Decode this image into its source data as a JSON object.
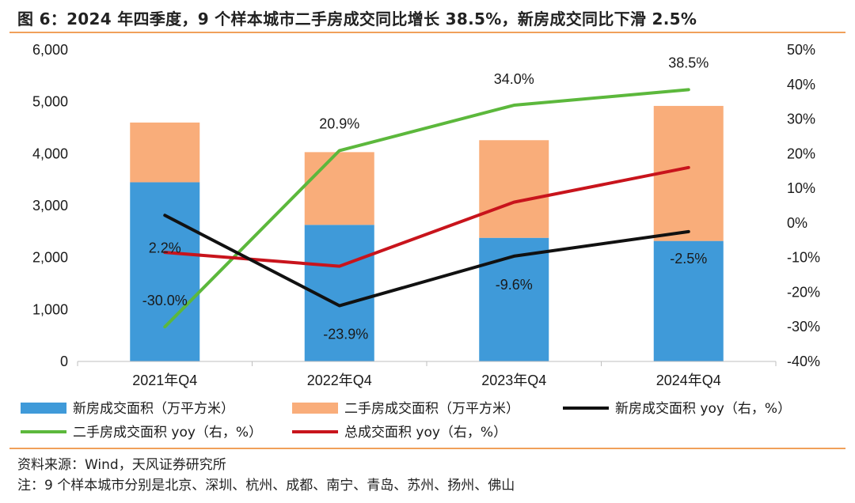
{
  "figure": {
    "title": "图 6：2024 年四季度，9 个样本城市二手房成交同比增长 38.5%，新房成交同比下滑 2.5%",
    "source": "资料来源：Wind，天风证券研究所",
    "note": "注：9 个样本城市分别是北京、深圳、杭州、成都、南宁、青岛、苏州、扬州、佛山"
  },
  "chart_data": {
    "type": "bar",
    "stacked": true,
    "categories": [
      "2021年Q4",
      "2022年Q4",
      "2023年Q4",
      "2024年Q4"
    ],
    "left_axis": {
      "ylim": [
        0,
        6000
      ],
      "ticks": [
        "0",
        "1,000",
        "2,000",
        "3,000",
        "4,000",
        "5,000",
        "6,000"
      ]
    },
    "right_axis": {
      "ylim": [
        -40,
        50
      ],
      "ticks": [
        "-40%",
        "-30%",
        "-20%",
        "-10%",
        "0%",
        "10%",
        "20%",
        "30%",
        "40%",
        "50%"
      ]
    },
    "bar_series": [
      {
        "name": "新房成交面积（万平方米）",
        "color": "#3f9ad9",
        "values": [
          3450,
          2630,
          2380,
          2320
        ]
      },
      {
        "name": "二手房成交面积（万平方米）",
        "color": "#f9ad7a",
        "values": [
          1150,
          1400,
          1880,
          2600
        ]
      }
    ],
    "line_series": [
      {
        "name": "新房成交面积 yoy（右，%）",
        "color": "#111111",
        "values": [
          2.2,
          -23.9,
          -9.6,
          -2.5
        ],
        "labels": [
          "2.2%",
          "-23.9%",
          "-9.6%",
          "-2.5%"
        ]
      },
      {
        "name": "二手房成交面积 yoy（右，%）",
        "color": "#5cb83c",
        "values": [
          -30.0,
          20.9,
          34.0,
          38.5
        ],
        "labels": [
          "-30.0%",
          "20.9%",
          "34.0%",
          "38.5%"
        ]
      },
      {
        "name": "总成交面积 yoy（右，%）",
        "color": "#c8141c",
        "values": [
          -8.5,
          -12.5,
          6.0,
          16.0
        ]
      }
    ],
    "grid": false,
    "legend_position": "bottom"
  }
}
